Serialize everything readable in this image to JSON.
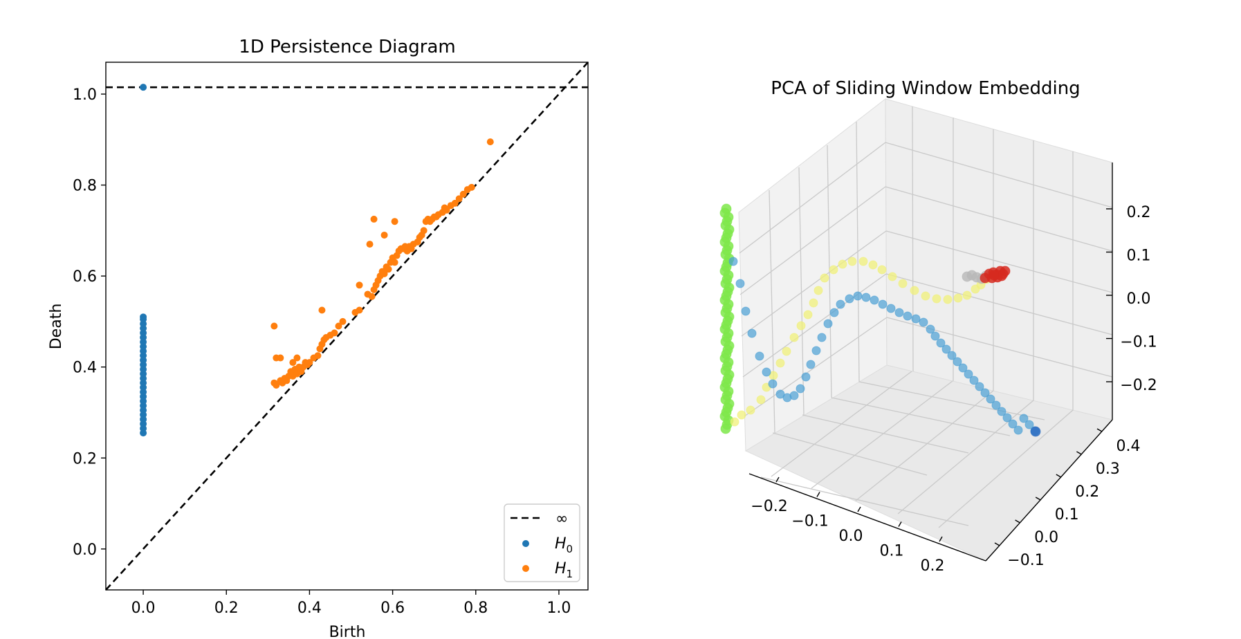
{
  "chart_data": [
    {
      "type": "scatter",
      "title": "1D Persistence Diagram",
      "xlabel": "Birth",
      "ylabel": "Death",
      "xlim": [
        -0.09,
        1.07
      ],
      "ylim": [
        -0.09,
        1.07
      ],
      "xticks": [
        "0.0",
        "0.2",
        "0.4",
        "0.6",
        "0.8",
        "1.0"
      ],
      "yticks": [
        "0.0",
        "0.2",
        "0.4",
        "0.6",
        "0.8",
        "1.0"
      ],
      "infinity_level": 1.015,
      "diagonal": true,
      "grid": false,
      "legend_position": "bottom-right",
      "legend": {
        "infinity": "∞",
        "h0_base": "H",
        "h0_sub": "0",
        "h1_base": "H",
        "h1_sub": "1"
      },
      "colors": {
        "h0": "#1f77b4",
        "h1": "#ff7f0e",
        "line": "#000000"
      },
      "series": [
        {
          "name": "H0",
          "points": [
            [
              0,
              1.015
            ],
            [
              0,
              0.255
            ],
            [
              0,
              0.265
            ],
            [
              0,
              0.275
            ],
            [
              0,
              0.285
            ],
            [
              0,
              0.295
            ],
            [
              0,
              0.305
            ],
            [
              0,
              0.315
            ],
            [
              0,
              0.325
            ],
            [
              0,
              0.335
            ],
            [
              0,
              0.345
            ],
            [
              0,
              0.355
            ],
            [
              0,
              0.365
            ],
            [
              0,
              0.375
            ],
            [
              0,
              0.385
            ],
            [
              0,
              0.395
            ],
            [
              0,
              0.405
            ],
            [
              0,
              0.415
            ],
            [
              0,
              0.425
            ],
            [
              0,
              0.435
            ],
            [
              0,
              0.445
            ],
            [
              0,
              0.455
            ],
            [
              0,
              0.465
            ],
            [
              0,
              0.475
            ],
            [
              0,
              0.485
            ],
            [
              0,
              0.495
            ],
            [
              0,
              0.505
            ],
            [
              0,
              0.51
            ]
          ]
        },
        {
          "name": "H1",
          "points": [
            [
              0.315,
              0.49
            ],
            [
              0.32,
              0.42
            ],
            [
              0.33,
              0.42
            ],
            [
              0.315,
              0.365
            ],
            [
              0.32,
              0.36
            ],
            [
              0.33,
              0.37
            ],
            [
              0.335,
              0.365
            ],
            [
              0.34,
              0.375
            ],
            [
              0.345,
              0.37
            ],
            [
              0.35,
              0.38
            ],
            [
              0.355,
              0.39
            ],
            [
              0.36,
              0.38
            ],
            [
              0.365,
              0.395
            ],
            [
              0.37,
              0.385
            ],
            [
              0.375,
              0.4
            ],
            [
              0.38,
              0.39
            ],
            [
              0.385,
              0.4
            ],
            [
              0.39,
              0.41
            ],
            [
              0.395,
              0.405
            ],
            [
              0.4,
              0.41
            ],
            [
              0.41,
              0.42
            ],
            [
              0.36,
              0.41
            ],
            [
              0.37,
              0.42
            ],
            [
              0.42,
              0.425
            ],
            [
              0.425,
              0.44
            ],
            [
              0.43,
              0.45
            ],
            [
              0.435,
              0.46
            ],
            [
              0.44,
              0.465
            ],
            [
              0.45,
              0.47
            ],
            [
              0.46,
              0.475
            ],
            [
              0.47,
              0.49
            ],
            [
              0.48,
              0.5
            ],
            [
              0.51,
              0.52
            ],
            [
              0.52,
              0.525
            ],
            [
              0.43,
              0.525
            ],
            [
              0.55,
              0.555
            ],
            [
              0.555,
              0.57
            ],
            [
              0.56,
              0.58
            ],
            [
              0.565,
              0.59
            ],
            [
              0.57,
              0.6
            ],
            [
              0.575,
              0.61
            ],
            [
              0.58,
              0.605
            ],
            [
              0.585,
              0.62
            ],
            [
              0.59,
              0.615
            ],
            [
              0.595,
              0.63
            ],
            [
              0.6,
              0.64
            ],
            [
              0.605,
              0.63
            ],
            [
              0.61,
              0.645
            ],
            [
              0.615,
              0.655
            ],
            [
              0.62,
              0.66
            ],
            [
              0.625,
              0.66
            ],
            [
              0.63,
              0.665
            ],
            [
              0.635,
              0.655
            ],
            [
              0.64,
              0.665
            ],
            [
              0.645,
              0.66
            ],
            [
              0.65,
              0.67
            ],
            [
              0.66,
              0.675
            ],
            [
              0.665,
              0.685
            ],
            [
              0.67,
              0.69
            ],
            [
              0.675,
              0.7
            ],
            [
              0.68,
              0.72
            ],
            [
              0.685,
              0.725
            ],
            [
              0.69,
              0.72
            ],
            [
              0.695,
              0.725
            ],
            [
              0.7,
              0.73
            ],
            [
              0.705,
              0.73
            ],
            [
              0.71,
              0.735
            ],
            [
              0.72,
              0.74
            ],
            [
              0.725,
              0.75
            ],
            [
              0.73,
              0.745
            ],
            [
              0.74,
              0.755
            ],
            [
              0.75,
              0.76
            ],
            [
              0.76,
              0.77
            ],
            [
              0.77,
              0.78
            ],
            [
              0.78,
              0.79
            ],
            [
              0.79,
              0.795
            ],
            [
              0.555,
              0.725
            ],
            [
              0.605,
              0.72
            ],
            [
              0.545,
              0.67
            ],
            [
              0.58,
              0.69
            ],
            [
              0.835,
              0.895
            ],
            [
              0.52,
              0.58
            ],
            [
              0.54,
              0.56
            ]
          ]
        }
      ]
    },
    {
      "type": "scatter3d",
      "title": "PCA of Sliding Window Embedding",
      "xticks": [
        "−0.2",
        "−0.1",
        "0.0",
        "0.1",
        "0.2"
      ],
      "yticks": [
        "−0.1",
        "0.0",
        "0.1",
        "0.2",
        "0.3",
        "0.4"
      ],
      "zticks": [
        "−0.2",
        "−0.1",
        "0.0",
        "0.1",
        "0.2"
      ],
      "grid": true,
      "colors": {
        "pane": "#f2f2f2",
        "green": "#7ee84a",
        "yellow": "#f0f07a",
        "blue": "#4a9fd4",
        "gray": "#b8b8b8",
        "red": "#d62a20"
      }
    }
  ]
}
